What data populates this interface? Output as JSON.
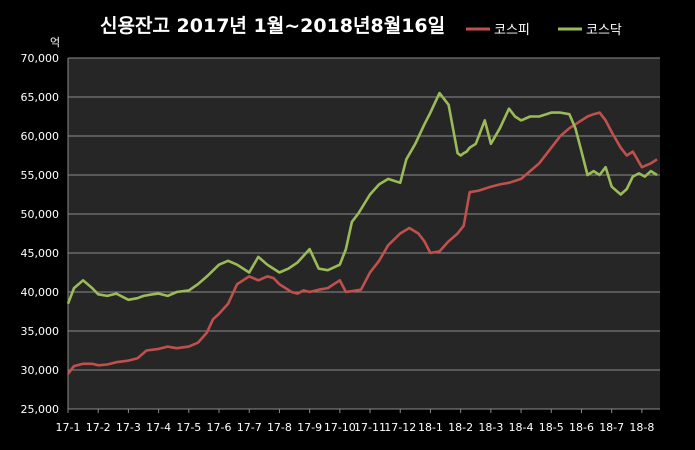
{
  "chart_data": {
    "type": "line",
    "title": "신용잔고 2017년 1월~2018년8월16일",
    "ylabel": "억",
    "ylim": [
      25000,
      70000
    ],
    "yticks": [
      25000,
      30000,
      35000,
      40000,
      45000,
      50000,
      55000,
      60000,
      65000,
      70000
    ],
    "ytick_labels": [
      "25,000",
      "30,000",
      "35,000",
      "40,000",
      "45,000",
      "50,000",
      "55,000",
      "60,000",
      "65,000",
      "70,000"
    ],
    "x_range": [
      0,
      19.6
    ],
    "categories": [
      "17-1",
      "17-2",
      "17-3",
      "17-4",
      "17-5",
      "17-6",
      "17-7",
      "17-8",
      "17-9",
      "17-10",
      "17-11",
      "17-12",
      "18-1",
      "18-2",
      "18-3",
      "18-4",
      "18-5",
      "18-6",
      "18-7",
      "18-8"
    ],
    "grid": true,
    "legend_position": "top-right",
    "series": [
      {
        "name": "코스피",
        "color": "#c0504d",
        "x": [
          0,
          0.2,
          0.5,
          0.8,
          1.0,
          1.3,
          1.6,
          2.0,
          2.3,
          2.6,
          3.0,
          3.3,
          3.6,
          4.0,
          4.3,
          4.6,
          4.8,
          5.0,
          5.3,
          5.6,
          6.0,
          6.3,
          6.6,
          6.8,
          7.0,
          7.2,
          7.4,
          7.6,
          7.8,
          8.0,
          8.3,
          8.6,
          9.0,
          9.2,
          9.4,
          9.7,
          10.0,
          10.3,
          10.6,
          11.0,
          11.3,
          11.6,
          11.8,
          12.0,
          12.3,
          12.6,
          12.9,
          13.0,
          13.1,
          13.3,
          13.6,
          14.0,
          14.3,
          14.6,
          15.0,
          15.3,
          15.6,
          16.0,
          16.3,
          16.6,
          16.8,
          17.0,
          17.2,
          17.4,
          17.6,
          17.8,
          18.0,
          18.3,
          18.5,
          18.7,
          19.0,
          19.3,
          19.5
        ],
        "values": [
          29500,
          30500,
          30800,
          30800,
          30600,
          30700,
          31000,
          31200,
          31500,
          32500,
          32700,
          33000,
          32800,
          33000,
          33500,
          34800,
          36500,
          37200,
          38500,
          41000,
          42000,
          41500,
          42000,
          41800,
          41000,
          40500,
          40000,
          39800,
          40200,
          40000,
          40300,
          40500,
          41500,
          40000,
          40100,
          40300,
          42500,
          44000,
          46000,
          47500,
          48200,
          47500,
          46500,
          45000,
          45200,
          46500,
          47500,
          48000,
          48500,
          52800,
          53000,
          53500,
          53800,
          54000,
          54500,
          55500,
          56500,
          58500,
          60000,
          61000,
          61500,
          62000,
          62500,
          62800,
          63000,
          62000,
          60500,
          58500,
          57500,
          58000,
          56000,
          56500,
          57000
        ]
      },
      {
        "name": "코스닥",
        "color": "#9bbb59",
        "x": [
          0,
          0.2,
          0.5,
          0.8,
          1.0,
          1.3,
          1.6,
          2.0,
          2.3,
          2.5,
          2.8,
          3.0,
          3.3,
          3.6,
          4.0,
          4.3,
          4.6,
          5.0,
          5.3,
          5.6,
          6.0,
          6.3,
          6.6,
          6.8,
          7.0,
          7.3,
          7.6,
          8.0,
          8.3,
          8.6,
          9.0,
          9.2,
          9.4,
          9.6,
          10.0,
          10.3,
          10.6,
          11.0,
          11.2,
          11.5,
          11.8,
          12.0,
          12.3,
          12.6,
          12.9,
          13.0,
          13.1,
          13.2,
          13.3,
          13.5,
          13.8,
          14.0,
          14.3,
          14.6,
          14.8,
          15.0,
          15.3,
          15.6,
          16.0,
          16.3,
          16.6,
          16.8,
          17.0,
          17.2,
          17.4,
          17.6,
          17.8,
          18.0,
          18.3,
          18.5,
          18.7,
          18.9,
          19.1,
          19.3,
          19.5
        ],
        "values": [
          38500,
          40500,
          41500,
          40500,
          39700,
          39500,
          39800,
          39000,
          39200,
          39500,
          39700,
          39800,
          39500,
          40000,
          40200,
          41000,
          42000,
          43500,
          44000,
          43500,
          42500,
          44500,
          43500,
          43000,
          42500,
          43000,
          43800,
          45500,
          43000,
          42800,
          43500,
          45500,
          49000,
          50000,
          52500,
          53800,
          54500,
          54000,
          57000,
          59000,
          61500,
          63000,
          65500,
          64000,
          57800,
          57500,
          57800,
          58000,
          58500,
          59000,
          62000,
          59000,
          61000,
          63500,
          62500,
          62000,
          62500,
          62500,
          63000,
          63000,
          62800,
          61000,
          58000,
          55000,
          55500,
          55000,
          56000,
          53500,
          52500,
          53200,
          54800,
          55200,
          54800,
          55500,
          55000
        ]
      }
    ]
  }
}
